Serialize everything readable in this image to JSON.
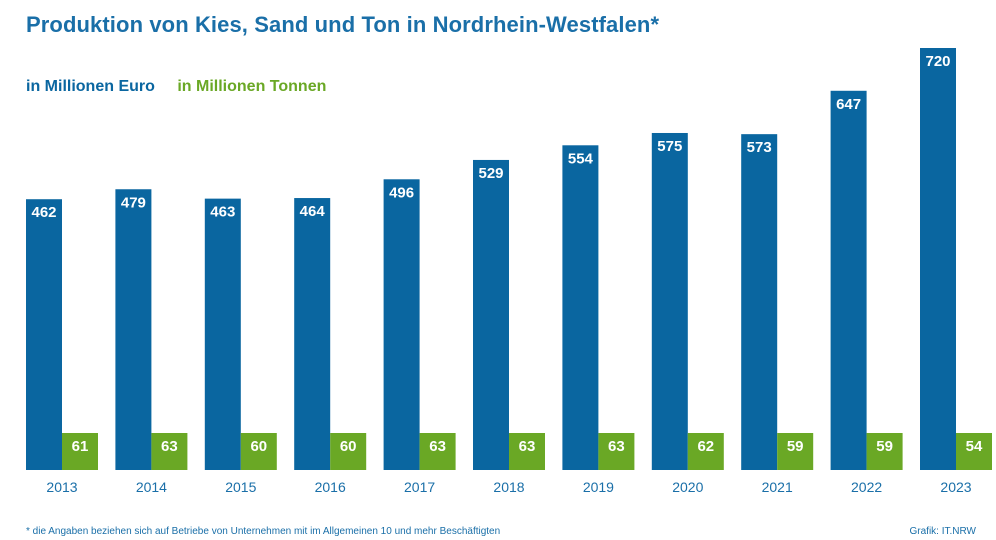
{
  "title": "Produktion von Kies, Sand und Ton in Nordrhein-Westfalen*",
  "footnote": "*  die Angaben beziehen sich auf Betriebe von Unternehmen mit im Allgemeinen 10 und mehr Beschäftigten",
  "credit": "Grafik: IT.NRW",
  "colors": {
    "euro": "#0a66a0",
    "tonnen": "#6aa825",
    "text_blue": "#1a6fa8"
  },
  "chart_data": {
    "type": "bar",
    "categories": [
      "2013",
      "2014",
      "2015",
      "2016",
      "2017",
      "2018",
      "2019",
      "2020",
      "2021",
      "2022",
      "2023"
    ],
    "series": [
      {
        "name": "in Millionen Euro",
        "values": [
          462,
          479,
          463,
          464,
          496,
          529,
          554,
          575,
          573,
          647,
          720
        ]
      },
      {
        "name": "in Millionen Tonnen",
        "values": [
          61,
          63,
          60,
          60,
          63,
          63,
          63,
          62,
          59,
          59,
          54
        ]
      }
    ],
    "title": "Produktion von Kies, Sand und Ton in Nordrhein-Westfalen*",
    "xlabel": "",
    "ylabel": "",
    "grid": false,
    "legend": "top-left"
  }
}
